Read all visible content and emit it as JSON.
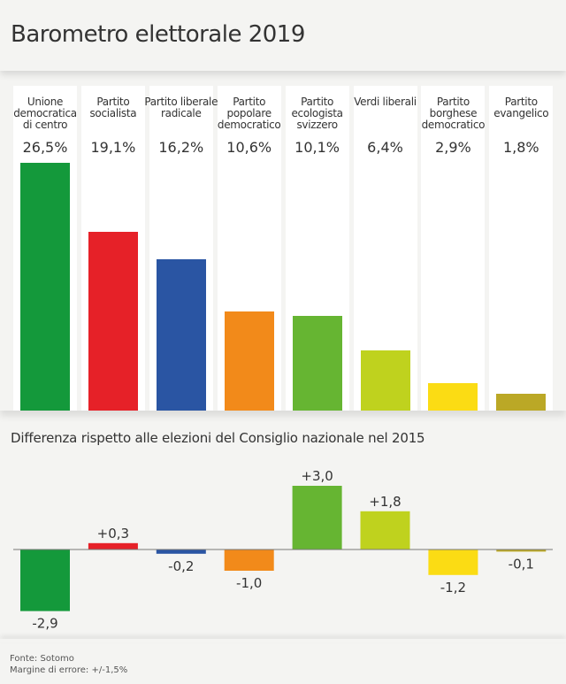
{
  "title": "Barometro elettorale 2019",
  "chart_data": [
    {
      "type": "bar",
      "title": "",
      "categories": [
        "Unione democratica di centro",
        "Partito socialista",
        "Partito liberale radicale",
        "Partito popolare democratico",
        "Partito ecologista svizzero",
        "Verdi liberali",
        "Partito borghese democratico",
        "Partito evangelico"
      ],
      "values": [
        26.5,
        19.1,
        16.2,
        10.6,
        10.1,
        6.4,
        2.9,
        1.8
      ],
      "labels": [
        "26,5%",
        "19,1%",
        "16,2%",
        "10,6%",
        "10,1%",
        "6,4%",
        "2,9%",
        "1,8%"
      ],
      "colors": [
        "#14993b",
        "#e62128",
        "#2a55a3",
        "#f28a1a",
        "#66b532",
        "#bfd21e",
        "#fbdc14",
        "#bba826"
      ],
      "ylim": [
        0,
        26.5
      ]
    },
    {
      "type": "bar",
      "title": "Differenza rispetto alle elezioni del Consiglio nazionale nel 2015",
      "categories": [
        "Unione democratica di centro",
        "Partito socialista",
        "Partito liberale radicale",
        "Partito popolare democratico",
        "Partito ecologista svizzero",
        "Verdi liberali",
        "Partito borghese democratico",
        "Partito evangelico"
      ],
      "values": [
        -2.9,
        0.3,
        -0.2,
        -1.0,
        3.0,
        1.8,
        -1.2,
        -0.1
      ],
      "labels": [
        "-2,9",
        "+0,3",
        "-0,2",
        "-1,0",
        "+3,0",
        "+1,8",
        "-1,2",
        "-0,1"
      ],
      "ylim": [
        -2.9,
        3.0
      ]
    }
  ],
  "footer": {
    "source": "Fonte: Sotomo",
    "margin": "Margine di errore: +/-1,5%"
  }
}
